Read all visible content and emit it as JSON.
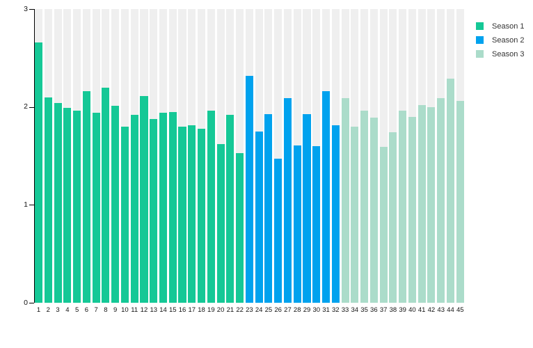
{
  "chart_data": {
    "type": "bar",
    "title": "",
    "xlabel": "",
    "ylabel": "",
    "ylim": [
      0,
      3
    ],
    "yticks": [
      0,
      1,
      2,
      3
    ],
    "grid": false,
    "legend_position": "top-right",
    "plot_background_column_color": "#efefef",
    "axis_color": "#000000",
    "categories": [
      1,
      2,
      3,
      4,
      5,
      6,
      7,
      8,
      9,
      10,
      11,
      12,
      13,
      14,
      15,
      16,
      17,
      18,
      19,
      20,
      21,
      22,
      23,
      24,
      25,
      26,
      27,
      28,
      29,
      30,
      31,
      32,
      33,
      34,
      35,
      36,
      37,
      38,
      39,
      40,
      41,
      42,
      43,
      44,
      45
    ],
    "series": [
      {
        "name": "Season 1",
        "color": "#15c896",
        "x_start": 1,
        "values": [
          2.66,
          2.1,
          2.04,
          1.99,
          1.96,
          2.16,
          1.94,
          2.2,
          2.01,
          1.8,
          1.92,
          2.11,
          1.88,
          1.94,
          1.95,
          1.8,
          1.81,
          1.78,
          1.96,
          1.62,
          1.92,
          1.53
        ]
      },
      {
        "name": "Season 2",
        "color": "#00a2ee",
        "x_start": 23,
        "values": [
          2.32,
          1.75,
          1.93,
          1.47,
          2.09,
          1.61,
          1.93,
          1.6,
          2.16,
          1.81
        ]
      },
      {
        "name": "Season 3",
        "color": "#abdcca",
        "x_start": 33,
        "values": [
          2.09,
          1.8,
          1.96,
          1.89,
          1.59,
          1.74,
          1.96,
          1.9,
          2.02,
          2.0,
          2.09,
          2.29,
          2.06
        ]
      }
    ]
  },
  "legend": {
    "items": [
      {
        "label": "Season 1",
        "color": "#15c896"
      },
      {
        "label": "Season 2",
        "color": "#00a2ee"
      },
      {
        "label": "Season 3",
        "color": "#abdcca"
      }
    ]
  }
}
